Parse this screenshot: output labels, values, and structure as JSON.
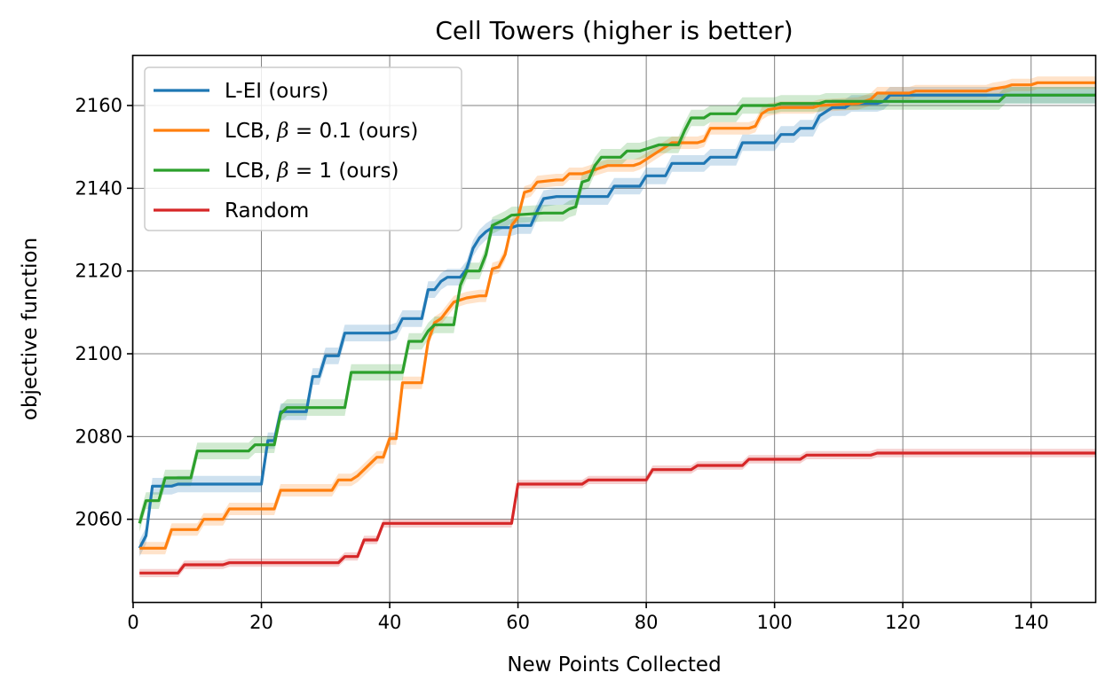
{
  "chart_data": {
    "type": "line",
    "title": "Cell Towers (higher is better)",
    "xlabel": "New Points Collected",
    "ylabel": "objective function",
    "xlim": [
      0,
      150
    ],
    "ylim": [
      2040,
      2172
    ],
    "xticks": [
      0,
      20,
      40,
      60,
      80,
      100,
      120,
      140
    ],
    "yticks": [
      2060,
      2080,
      2100,
      2120,
      2140,
      2160
    ],
    "grid": true,
    "legend_position": "upper left",
    "legend": [
      {
        "pre": "L-EI (ours)",
        "beta": "",
        "post": ""
      },
      {
        "pre": "LCB, ",
        "beta": "β",
        "post": " = 0.1 (ours)"
      },
      {
        "pre": "LCB, ",
        "beta": "β",
        "post": " = 1 (ours)"
      },
      {
        "pre": "Random",
        "beta": "",
        "post": ""
      }
    ],
    "series": [
      {
        "name": "L-EI (ours)",
        "color": "#1f77b4",
        "band": 2.0,
        "points": [
          [
            1,
            2053
          ],
          [
            2,
            2056
          ],
          [
            3,
            2068
          ],
          [
            6,
            2068
          ],
          [
            7,
            2068.5
          ],
          [
            20,
            2068.5
          ],
          [
            21,
            2079
          ],
          [
            22,
            2079
          ],
          [
            23,
            2086
          ],
          [
            24,
            2086
          ],
          [
            27,
            2086
          ],
          [
            28,
            2094.5
          ],
          [
            29,
            2094.5
          ],
          [
            30,
            2099.5
          ],
          [
            32,
            2099.5
          ],
          [
            33,
            2105
          ],
          [
            40,
            2105
          ],
          [
            41,
            2105.5
          ],
          [
            42,
            2108.5
          ],
          [
            45,
            2108.5
          ],
          [
            46,
            2115.5
          ],
          [
            47,
            2115.5
          ],
          [
            48,
            2117.5
          ],
          [
            49,
            2118.5
          ],
          [
            51,
            2118.5
          ],
          [
            52,
            2120.5
          ],
          [
            53,
            2125.5
          ],
          [
            54,
            2128
          ],
          [
            55,
            2129.5
          ],
          [
            56,
            2130.5
          ],
          [
            59,
            2130.5
          ],
          [
            60,
            2131
          ],
          [
            62,
            2131
          ],
          [
            63,
            2134.5
          ],
          [
            64,
            2137.5
          ],
          [
            66,
            2138
          ],
          [
            74,
            2138
          ],
          [
            75,
            2140.5
          ],
          [
            79,
            2140.5
          ],
          [
            80,
            2143
          ],
          [
            83,
            2143
          ],
          [
            84,
            2146
          ],
          [
            89,
            2146
          ],
          [
            90,
            2147.5
          ],
          [
            94,
            2147.5
          ],
          [
            95,
            2151
          ],
          [
            100,
            2151
          ],
          [
            101,
            2153
          ],
          [
            103,
            2153
          ],
          [
            104,
            2154.5
          ],
          [
            106,
            2154.5
          ],
          [
            107,
            2157.5
          ],
          [
            108,
            2158.5
          ],
          [
            109,
            2159.5
          ],
          [
            111,
            2159.5
          ],
          [
            112,
            2160.5
          ],
          [
            116,
            2160.5
          ],
          [
            117,
            2161
          ],
          [
            118,
            2162.5
          ],
          [
            150,
            2162.5
          ]
        ]
      },
      {
        "name": "LCB, β = 0.1 (ours)",
        "color": "#ff7f0e",
        "band": 1.5,
        "points": [
          [
            1,
            2053
          ],
          [
            5,
            2053
          ],
          [
            6,
            2057.5
          ],
          [
            9,
            2057.5
          ],
          [
            10,
            2057.5
          ],
          [
            11,
            2060
          ],
          [
            14,
            2060
          ],
          [
            15,
            2062.5
          ],
          [
            22,
            2062.5
          ],
          [
            23,
            2067
          ],
          [
            31,
            2067
          ],
          [
            32,
            2069.5
          ],
          [
            34,
            2069.5
          ],
          [
            35,
            2070.5
          ],
          [
            37,
            2073.5
          ],
          [
            38,
            2075
          ],
          [
            39,
            2075
          ],
          [
            40,
            2079.5
          ],
          [
            41,
            2079.5
          ],
          [
            42,
            2093
          ],
          [
            45,
            2093
          ],
          [
            46,
            2103
          ],
          [
            47,
            2107.5
          ],
          [
            48,
            2108.5
          ],
          [
            49,
            2110.5
          ],
          [
            50,
            2112.5
          ],
          [
            51,
            2113
          ],
          [
            52,
            2113.5
          ],
          [
            54,
            2114
          ],
          [
            55,
            2114
          ],
          [
            56,
            2120.5
          ],
          [
            57,
            2121
          ],
          [
            58,
            2124
          ],
          [
            59,
            2131
          ],
          [
            60,
            2133
          ],
          [
            61,
            2139
          ],
          [
            62,
            2139.5
          ],
          [
            63,
            2141.5
          ],
          [
            66,
            2142
          ],
          [
            67,
            2142
          ],
          [
            68,
            2143.5
          ],
          [
            70,
            2143.5
          ],
          [
            71,
            2144
          ],
          [
            72,
            2144.5
          ],
          [
            73,
            2145
          ],
          [
            74,
            2145.5
          ],
          [
            78,
            2145.5
          ],
          [
            79,
            2146
          ],
          [
            80,
            2147
          ],
          [
            82,
            2149
          ],
          [
            83,
            2150
          ],
          [
            84,
            2151
          ],
          [
            88,
            2151
          ],
          [
            89,
            2151.5
          ],
          [
            90,
            2154.5
          ],
          [
            96,
            2154.5
          ],
          [
            97,
            2155
          ],
          [
            98,
            2158
          ],
          [
            99,
            2159
          ],
          [
            101,
            2159.5
          ],
          [
            106,
            2159.5
          ],
          [
            107,
            2160
          ],
          [
            113,
            2160.5
          ],
          [
            115,
            2161.5
          ],
          [
            116,
            2163
          ],
          [
            121,
            2163
          ],
          [
            122,
            2163.5
          ],
          [
            133,
            2163.5
          ],
          [
            134,
            2164
          ],
          [
            136,
            2164.5
          ],
          [
            137,
            2165
          ],
          [
            140,
            2165
          ],
          [
            141,
            2165.5
          ],
          [
            150,
            2165.5
          ]
        ]
      },
      {
        "name": "LCB, β = 1 (ours)",
        "color": "#2ca02c",
        "band": 2.0,
        "points": [
          [
            1,
            2059
          ],
          [
            2,
            2064.5
          ],
          [
            4,
            2064.5
          ],
          [
            5,
            2070
          ],
          [
            9,
            2070
          ],
          [
            10,
            2076.5
          ],
          [
            18,
            2076.5
          ],
          [
            19,
            2078
          ],
          [
            22,
            2078
          ],
          [
            23,
            2085.5
          ],
          [
            24,
            2087
          ],
          [
            33,
            2087
          ],
          [
            34,
            2095.5
          ],
          [
            42,
            2095.5
          ],
          [
            43,
            2103
          ],
          [
            45,
            2103
          ],
          [
            46,
            2105.5
          ],
          [
            47,
            2107
          ],
          [
            50,
            2107
          ],
          [
            51,
            2116.5
          ],
          [
            52,
            2120
          ],
          [
            54,
            2120
          ],
          [
            55,
            2124
          ],
          [
            56,
            2131
          ],
          [
            58,
            2132.5
          ],
          [
            59,
            2133.5
          ],
          [
            64,
            2134
          ],
          [
            67,
            2134
          ],
          [
            68,
            2135
          ],
          [
            69,
            2135.5
          ],
          [
            70,
            2141.5
          ],
          [
            71,
            2142
          ],
          [
            72,
            2145.5
          ],
          [
            73,
            2147.5
          ],
          [
            76,
            2147.5
          ],
          [
            77,
            2149
          ],
          [
            79,
            2149
          ],
          [
            80,
            2149.5
          ],
          [
            81,
            2150
          ],
          [
            82,
            2150.5
          ],
          [
            85,
            2150.5
          ],
          [
            86,
            2154
          ],
          [
            87,
            2157
          ],
          [
            89,
            2157
          ],
          [
            90,
            2158
          ],
          [
            94,
            2158
          ],
          [
            95,
            2160
          ],
          [
            100,
            2160
          ],
          [
            101,
            2160.5
          ],
          [
            107,
            2160.5
          ],
          [
            108,
            2161
          ],
          [
            135,
            2161
          ],
          [
            136,
            2162.5
          ],
          [
            150,
            2162.5
          ]
        ]
      },
      {
        "name": "Random",
        "color": "#d62728",
        "band": 1.0,
        "points": [
          [
            1,
            2047
          ],
          [
            7,
            2047
          ],
          [
            8,
            2049
          ],
          [
            14,
            2049
          ],
          [
            15,
            2049.5
          ],
          [
            32,
            2049.5
          ],
          [
            33,
            2051
          ],
          [
            35,
            2051
          ],
          [
            36,
            2055
          ],
          [
            38,
            2055
          ],
          [
            39,
            2059
          ],
          [
            59,
            2059
          ],
          [
            60,
            2068.5
          ],
          [
            70,
            2068.5
          ],
          [
            71,
            2069.5
          ],
          [
            80,
            2069.5
          ],
          [
            81,
            2072
          ],
          [
            87,
            2072
          ],
          [
            88,
            2073
          ],
          [
            95,
            2073
          ],
          [
            96,
            2074.5
          ],
          [
            104,
            2074.5
          ],
          [
            105,
            2075.5
          ],
          [
            115,
            2075.5
          ],
          [
            116,
            2076
          ],
          [
            150,
            2076
          ]
        ]
      }
    ]
  }
}
